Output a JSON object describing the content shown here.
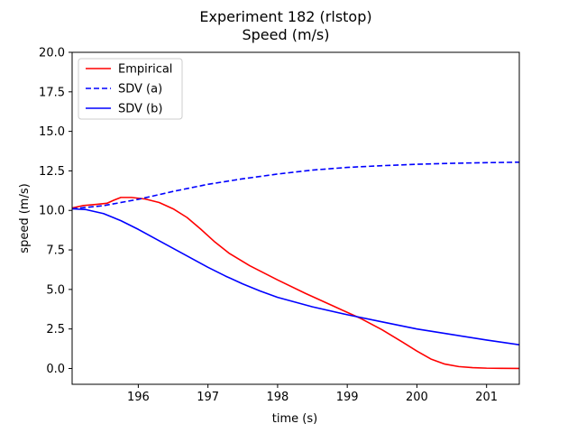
{
  "chart_data": {
    "type": "line",
    "title": "Experiment 182 (rlstop)",
    "subtitle": "Speed (m/s)",
    "xlabel": "time (s)",
    "ylabel": "speed (m/s)",
    "xlim": [
      195.05,
      201.47
    ],
    "ylim": [
      -1.0,
      20.0
    ],
    "xticks": [
      196,
      197,
      198,
      199,
      200,
      201
    ],
    "yticks": [
      0.0,
      2.5,
      5.0,
      7.5,
      10.0,
      12.5,
      15.0,
      17.5,
      20.0
    ],
    "xtick_labels": [
      "196",
      "197",
      "198",
      "199",
      "200",
      "201"
    ],
    "ytick_labels": [
      "0.0",
      "2.5",
      "5.0",
      "7.5",
      "10.0",
      "12.5",
      "15.0",
      "17.5",
      "20.0"
    ],
    "grid": false,
    "legend_position": "top-left",
    "series": [
      {
        "name": "Empirical",
        "color": "#ff0000",
        "dash": "solid",
        "x": [
          195.05,
          195.2,
          195.4,
          195.55,
          195.65,
          195.75,
          195.9,
          196.1,
          196.3,
          196.5,
          196.7,
          196.9,
          197.1,
          197.3,
          197.6,
          198.0,
          198.4,
          198.8,
          199.2,
          199.5,
          199.8,
          200.0,
          200.2,
          200.4,
          200.6,
          200.8,
          201.0,
          201.2,
          201.47
        ],
        "y": [
          10.15,
          10.3,
          10.38,
          10.45,
          10.65,
          10.82,
          10.82,
          10.72,
          10.5,
          10.1,
          9.55,
          8.8,
          8.0,
          7.3,
          6.5,
          5.6,
          4.75,
          3.95,
          3.15,
          2.45,
          1.65,
          1.1,
          0.6,
          0.28,
          0.12,
          0.05,
          0.02,
          0.01,
          0.0
        ]
      },
      {
        "name": "SDV (a)",
        "color": "#0000ff",
        "dash": "dashed",
        "x": [
          195.05,
          195.5,
          196.0,
          196.5,
          197.0,
          197.5,
          198.0,
          198.5,
          199.0,
          199.5,
          200.0,
          200.5,
          201.0,
          201.47
        ],
        "y": [
          10.1,
          10.3,
          10.7,
          11.2,
          11.65,
          12.0,
          12.3,
          12.55,
          12.72,
          12.83,
          12.92,
          12.98,
          13.02,
          13.05
        ]
      },
      {
        "name": "SDV (b)",
        "color": "#0000ff",
        "dash": "solid",
        "x": [
          195.05,
          195.25,
          195.5,
          195.75,
          196.0,
          196.25,
          196.5,
          196.75,
          197.0,
          197.25,
          197.5,
          197.75,
          198.0,
          198.5,
          199.0,
          199.5,
          200.0,
          200.5,
          201.0,
          201.47
        ],
        "y": [
          10.1,
          10.05,
          9.8,
          9.35,
          8.8,
          8.2,
          7.6,
          7.0,
          6.4,
          5.85,
          5.35,
          4.9,
          4.5,
          3.9,
          3.4,
          2.95,
          2.5,
          2.15,
          1.8,
          1.5
        ]
      }
    ]
  }
}
